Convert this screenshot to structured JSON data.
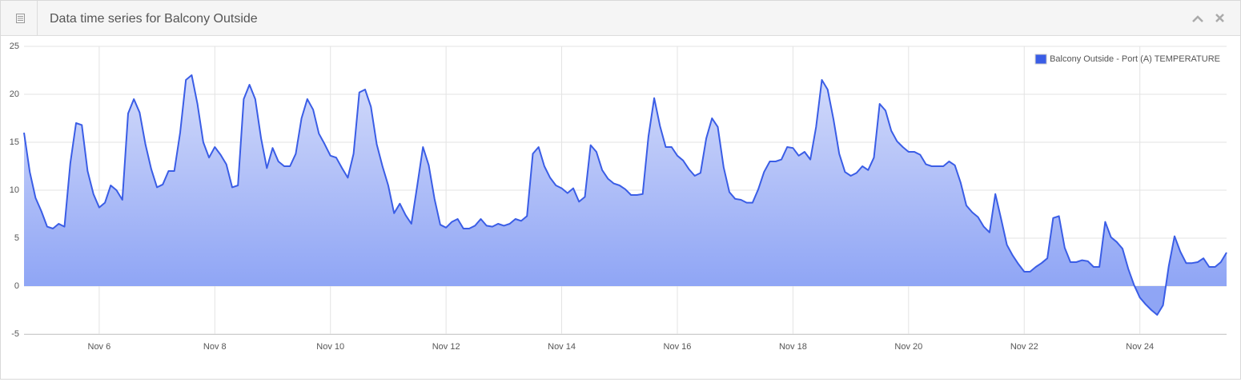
{
  "panel": {
    "title": "Data time series for Balcony Outside"
  },
  "chart_data": {
    "type": "area",
    "x": [
      4.7,
      4.8,
      4.9,
      5.0,
      5.1,
      5.2,
      5.3,
      5.4,
      5.5,
      5.6,
      5.7,
      5.8,
      5.9,
      6.0,
      6.1,
      6.2,
      6.3,
      6.4,
      6.5,
      6.6,
      6.7,
      6.8,
      6.9,
      7.0,
      7.1,
      7.2,
      7.3,
      7.4,
      7.5,
      7.6,
      7.7,
      7.8,
      7.9,
      8.0,
      8.1,
      8.2,
      8.3,
      8.4,
      8.5,
      8.6,
      8.7,
      8.8,
      8.9,
      9.0,
      9.1,
      9.2,
      9.3,
      9.4,
      9.5,
      9.6,
      9.7,
      9.8,
      9.9,
      10.0,
      10.1,
      10.2,
      10.3,
      10.4,
      10.5,
      10.6,
      10.7,
      10.8,
      10.9,
      11.0,
      11.1,
      11.2,
      11.3,
      11.4,
      11.5,
      11.6,
      11.7,
      11.8,
      11.9,
      12.0,
      12.1,
      12.2,
      12.3,
      12.4,
      12.5,
      12.6,
      12.7,
      12.8,
      12.9,
      13.0,
      13.1,
      13.2,
      13.3,
      13.4,
      13.5,
      13.6,
      13.7,
      13.8,
      13.9,
      14.0,
      14.1,
      14.2,
      14.3,
      14.4,
      14.5,
      14.6,
      14.7,
      14.8,
      14.9,
      15.0,
      15.1,
      15.2,
      15.3,
      15.4,
      15.5,
      15.6,
      15.7,
      15.8,
      15.9,
      16.0,
      16.1,
      16.2,
      16.3,
      16.4,
      16.5,
      16.6,
      16.7,
      16.8,
      16.9,
      17.0,
      17.1,
      17.2,
      17.3,
      17.4,
      17.5,
      17.6,
      17.7,
      17.8,
      17.9,
      18.0,
      18.1,
      18.2,
      18.3,
      18.4,
      18.5,
      18.6,
      18.7,
      18.8,
      18.9,
      19.0,
      19.1,
      19.2,
      19.3,
      19.4,
      19.5,
      19.6,
      19.7,
      19.8,
      19.9,
      20.0,
      20.1,
      20.2,
      20.3,
      20.4,
      20.5,
      20.6,
      20.7,
      20.8,
      20.9,
      21.0,
      21.1,
      21.2,
      21.3,
      21.4,
      21.5,
      21.6,
      21.7,
      21.8,
      21.9,
      22.0,
      22.1,
      22.2,
      22.3,
      22.4,
      22.5,
      22.6,
      22.7,
      22.8,
      22.9,
      23.0,
      23.1,
      23.2,
      23.3,
      23.4,
      23.5,
      23.6,
      23.7,
      23.8,
      23.9,
      24.0,
      24.1,
      24.2,
      24.3,
      24.4,
      24.5,
      24.6,
      24.7,
      24.8,
      24.9,
      25.0,
      25.1,
      25.2,
      25.3,
      25.4,
      25.5
    ],
    "series": [
      {
        "name": "Balcony Outside - Port (A) TEMPERATURE",
        "color": "#3a5de6",
        "values": [
          16,
          11.9,
          9.2,
          7.8,
          6.2,
          6,
          6.5,
          6.2,
          12.8,
          17,
          16.8,
          12,
          9.6,
          8.2,
          8.7,
          10.5,
          10,
          9,
          18,
          19.5,
          18.1,
          14.8,
          12.2,
          10.3,
          10.6,
          12,
          12,
          16,
          21.5,
          22,
          19,
          15,
          13.4,
          14.5,
          13.7,
          12.7,
          10.3,
          10.5,
          19.5,
          21,
          19.5,
          15.4,
          12.3,
          14.4,
          13,
          12.5,
          12.5,
          13.8,
          17.5,
          19.5,
          18.4,
          15.9,
          14.8,
          13.6,
          13.4,
          12.3,
          11.3,
          13.8,
          20.2,
          20.5,
          18.7,
          14.8,
          12.5,
          10.5,
          7.6,
          8.6,
          7.4,
          6.5,
          10.4,
          14.5,
          12.6,
          9.1,
          6.4,
          6.1,
          6.7,
          7,
          6,
          6,
          6.3,
          7,
          6.3,
          6.2,
          6.5,
          6.3,
          6.5,
          7,
          6.8,
          7.3,
          13.8,
          14.5,
          12.5,
          11.3,
          10.5,
          10.2,
          9.7,
          10.2,
          8.8,
          9.3,
          14.7,
          14,
          12.1,
          11.2,
          10.7,
          10.5,
          10.1,
          9.5,
          9.5,
          9.6,
          15.6,
          19.6,
          16.7,
          14.5,
          14.5,
          13.6,
          13.1,
          12.2,
          11.5,
          11.8,
          15.4,
          17.5,
          16.6,
          12.4,
          9.8,
          9.1,
          9,
          8.7,
          8.7,
          10.1,
          11.9,
          13,
          13,
          13.2,
          14.5,
          14.4,
          13.6,
          14,
          13.2,
          16.6,
          21.5,
          20.5,
          17.4,
          13.8,
          11.9,
          11.5,
          11.8,
          12.5,
          12.1,
          13.4,
          19,
          18.3,
          16.2,
          15.1,
          14.5,
          14,
          14,
          13.7,
          12.7,
          12.5,
          12.5,
          12.5,
          13,
          12.6,
          10.8,
          8.4,
          7.7,
          7.2,
          6.2,
          5.6,
          9.6,
          7,
          4.3,
          3.2,
          2.3,
          1.5,
          1.5,
          2,
          2.4,
          2.9,
          7.1,
          7.3,
          4,
          2.5,
          2.5,
          2.7,
          2.6,
          2,
          2,
          6.7,
          5.1,
          4.6,
          3.9,
          1.8,
          0.1,
          -1.2,
          -1.9,
          -2.5,
          -3,
          -2,
          2.1,
          5.2,
          3.6,
          2.4,
          2.4,
          2.5,
          2.9,
          2,
          2,
          2.5,
          3.5
        ]
      }
    ],
    "xlim": [
      4.7,
      25.5
    ],
    "xticks": [
      {
        "value": 6,
        "label": "Nov 6"
      },
      {
        "value": 8,
        "label": "Nov 8"
      },
      {
        "value": 10,
        "label": "Nov 10"
      },
      {
        "value": 12,
        "label": "Nov 12"
      },
      {
        "value": 14,
        "label": "Nov 14"
      },
      {
        "value": 16,
        "label": "Nov 16"
      },
      {
        "value": 18,
        "label": "Nov 18"
      },
      {
        "value": 20,
        "label": "Nov 20"
      },
      {
        "value": 22,
        "label": "Nov 22"
      },
      {
        "value": 24,
        "label": "Nov 24"
      }
    ],
    "ylim": [
      -5,
      25
    ],
    "yticks": [
      -5,
      0,
      5,
      10,
      15,
      20,
      25
    ],
    "grid": true,
    "legend": "top-right"
  }
}
